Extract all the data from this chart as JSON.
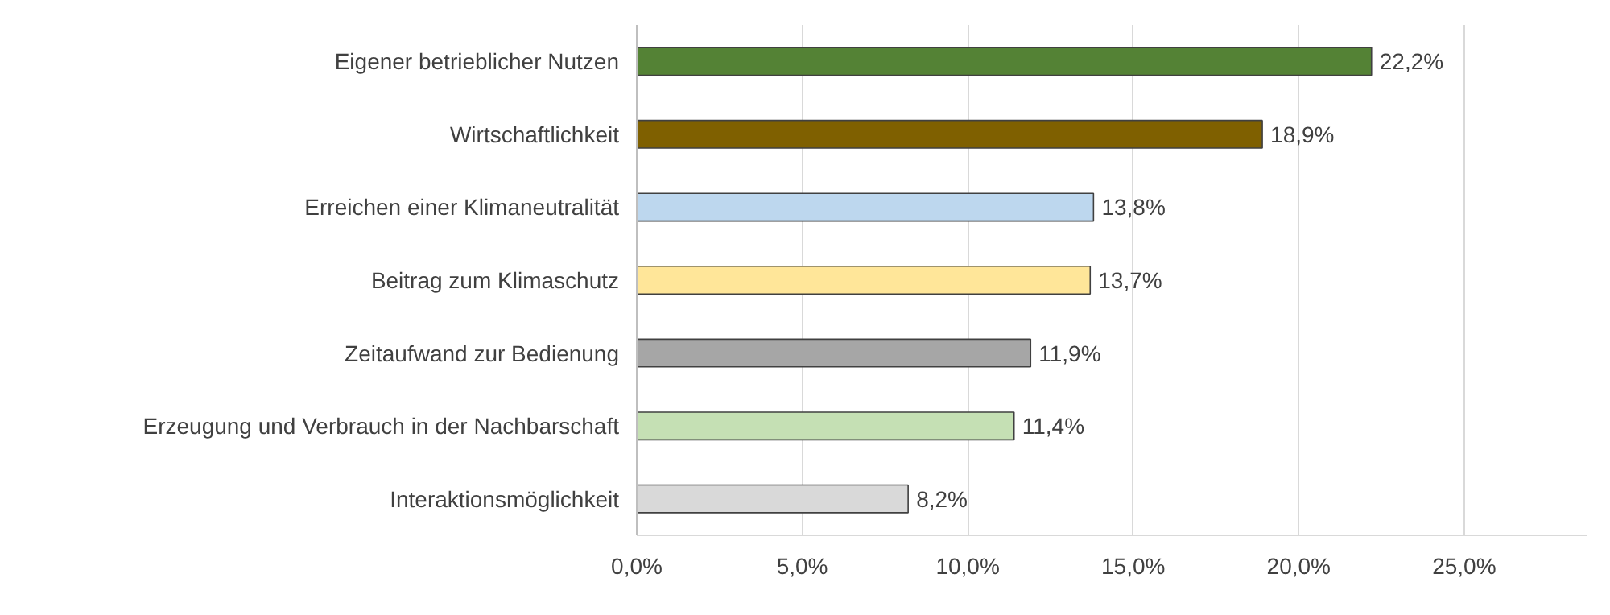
{
  "chart_data": {
    "type": "bar",
    "orientation": "horizontal",
    "categories": [
      "Eigener betrieblicher Nutzen",
      "Wirtschaftlichkeit",
      "Erreichen einer Klimaneutralität",
      "Beitrag zum Klimaschutz",
      "Zeitaufwand zur Bedienung",
      "Erzeugung und Verbrauch in der Nachbarschaft",
      "Interaktionsmöglichkeit"
    ],
    "values": [
      22.2,
      18.9,
      13.8,
      13.7,
      11.9,
      11.4,
      8.2
    ],
    "colors": [
      "#548235",
      "#7f6000",
      "#bdd7ee",
      "#ffe699",
      "#a6a6a6",
      "#c5e0b4",
      "#d9d9d9"
    ],
    "value_labels": [
      "22,2%",
      "18,9%",
      "13,8%",
      "13,7%",
      "11,9%",
      "11,4%",
      "8,2%"
    ],
    "xlim": [
      0,
      28.7
    ],
    "xticks": [
      {
        "value": 0,
        "label": "0,0%"
      },
      {
        "value": 5,
        "label": "5,0%"
      },
      {
        "value": 10,
        "label": "10,0%"
      },
      {
        "value": 15,
        "label": "15,0%"
      },
      {
        "value": 20,
        "label": "20,0%"
      },
      {
        "value": 25,
        "label": "25,0%"
      }
    ],
    "grid": "x"
  }
}
